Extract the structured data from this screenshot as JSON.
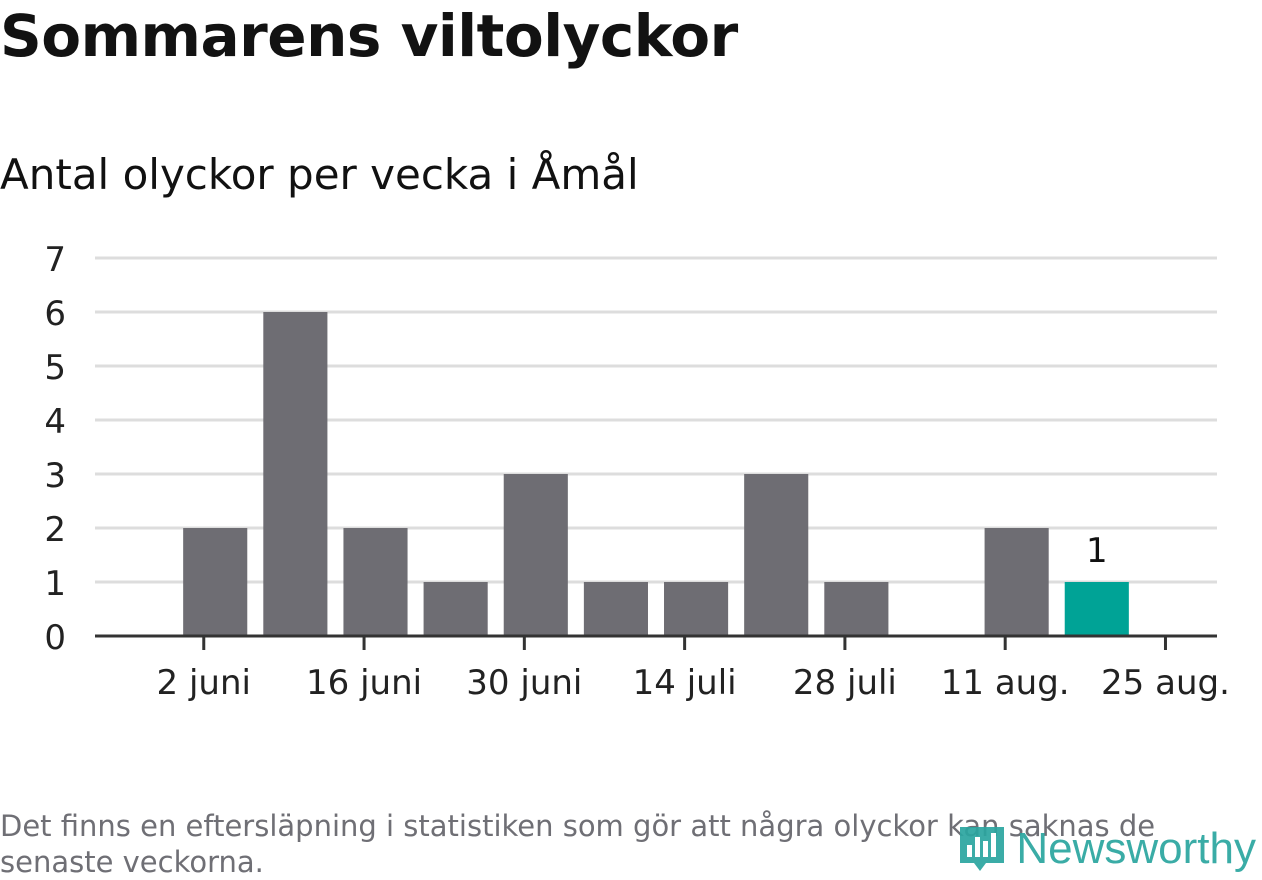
{
  "title": "Sommarens viltolyckor",
  "subtitle": "Antal olyckor per vecka i Åmål",
  "note": "Det finns en eftersläpning i statistiken som gör att några olyckor kan saknas de senaste veckorna.",
  "logo": {
    "text": "Newsworthy",
    "icon": "bar-chart-icon"
  },
  "colors": {
    "bar": "#6e6d73",
    "highlight": "#00a396",
    "grid": "#dddddd",
    "axis": "#333333",
    "logo": "#2aa59f"
  },
  "chart_data": {
    "type": "bar",
    "x": [
      "2024-05-27",
      "2024-06-03",
      "2024-06-10",
      "2024-06-17",
      "2024-06-24",
      "2024-07-01",
      "2024-07-08",
      "2024-07-15",
      "2024-07-22",
      "2024-07-29",
      "2024-08-05",
      "2024-08-12",
      "2024-08-19",
      "2024-08-26"
    ],
    "values": [
      0,
      2,
      6,
      2,
      1,
      3,
      1,
      1,
      3,
      1,
      0,
      2,
      1,
      null
    ],
    "highlight_index": 12,
    "data_labels": [
      {
        "index": 12,
        "text": "1"
      }
    ],
    "ticks": [
      {
        "at": "2024-06-02",
        "label": "2 juni"
      },
      {
        "at": "2024-06-16",
        "label": "16 juni"
      },
      {
        "at": "2024-06-30",
        "label": "30 juni"
      },
      {
        "at": "2024-07-14",
        "label": "14 juli"
      },
      {
        "at": "2024-07-28",
        "label": "28 juli"
      },
      {
        "at": "2024-08-11",
        "label": "11 aug."
      },
      {
        "at": "2024-08-25",
        "label": "25 aug."
      }
    ],
    "yticks": [
      0,
      1,
      2,
      3,
      4,
      5,
      6,
      7
    ],
    "ylim": [
      0,
      7
    ],
    "grid": true,
    "legend": "none"
  }
}
